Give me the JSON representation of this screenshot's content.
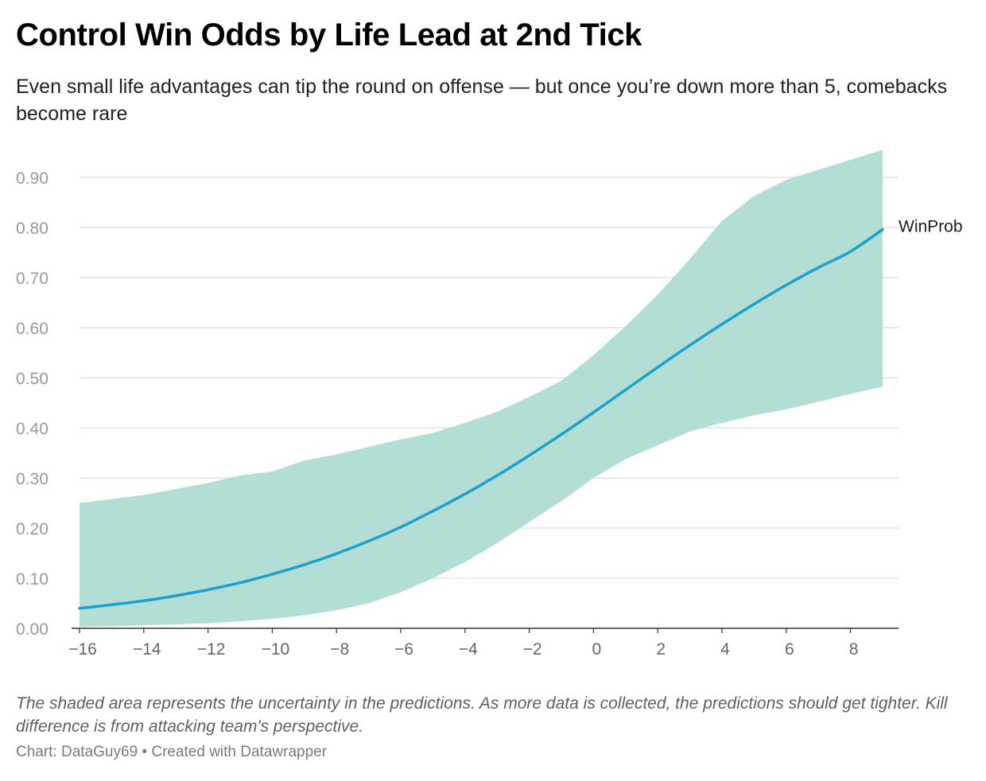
{
  "header": {
    "title": "Control Win Odds by Life Lead at 2nd Tick",
    "subtitle": "Even small life advantages can tip the round on offense — but once you’re down more than 5, comebacks become rare"
  },
  "footer": {
    "notes": "The shaded area represents the uncertainty in the predictions. As more data is collected, the predictions should get tighter. Kill difference is from attacking team's perspective.",
    "byline": "Chart: DataGuy69 • Created with Datawrapper"
  },
  "colors": {
    "line": "#1ba2cc",
    "band": "#b3ded5",
    "grid": "#e3e3e3",
    "axis": "#333333"
  },
  "chart_data": {
    "type": "line",
    "xlim": [
      -16,
      9
    ],
    "ylim": [
      0,
      0.95
    ],
    "x_ticks": [
      -16,
      -14,
      -12,
      -10,
      -8,
      -6,
      -4,
      -2,
      0,
      2,
      4,
      6,
      8
    ],
    "x_tick_labels": [
      "−16",
      "−14",
      "−12",
      "−10",
      "−8",
      "−6",
      "−4",
      "−2",
      "0",
      "2",
      "4",
      "6",
      "8"
    ],
    "y_ticks": [
      0,
      0.1,
      0.2,
      0.3,
      0.4,
      0.5,
      0.6,
      0.7,
      0.8,
      0.9
    ],
    "y_tick_labels": [
      "0.00",
      "0.10",
      "0.20",
      "0.30",
      "0.40",
      "0.50",
      "0.60",
      "0.70",
      "0.80",
      "0.90"
    ],
    "grid": true,
    "legend": "label at end of line",
    "series": [
      {
        "name": "WinProb",
        "x": [
          -16,
          -15,
          -14,
          -13,
          -12,
          -11,
          -10,
          -9,
          -8,
          -7,
          -6,
          -5,
          -4,
          -3,
          -2,
          -1,
          0,
          1,
          2,
          3,
          4,
          5,
          6,
          7,
          8,
          9
        ],
        "values": [
          0.04,
          0.047,
          0.055,
          0.065,
          0.077,
          0.091,
          0.108,
          0.127,
          0.149,
          0.174,
          0.202,
          0.234,
          0.268,
          0.305,
          0.345,
          0.387,
          0.431,
          0.476,
          0.521,
          0.565,
          0.607,
          0.647,
          0.685,
          0.72,
          0.752,
          0.796
        ],
        "lower": [
          0.003,
          0.004,
          0.006,
          0.008,
          0.01,
          0.014,
          0.019,
          0.026,
          0.036,
          0.05,
          0.072,
          0.1,
          0.132,
          0.17,
          0.212,
          0.254,
          0.3,
          0.338,
          0.365,
          0.393,
          0.41,
          0.425,
          0.437,
          0.452,
          0.468,
          0.482
        ],
        "upper": [
          0.25,
          0.258,
          0.266,
          0.278,
          0.29,
          0.305,
          0.313,
          0.335,
          0.347,
          0.362,
          0.377,
          0.39,
          0.41,
          0.432,
          0.462,
          0.494,
          0.545,
          0.603,
          0.666,
          0.737,
          0.813,
          0.863,
          0.895,
          0.915,
          0.935,
          0.955
        ]
      }
    ]
  }
}
